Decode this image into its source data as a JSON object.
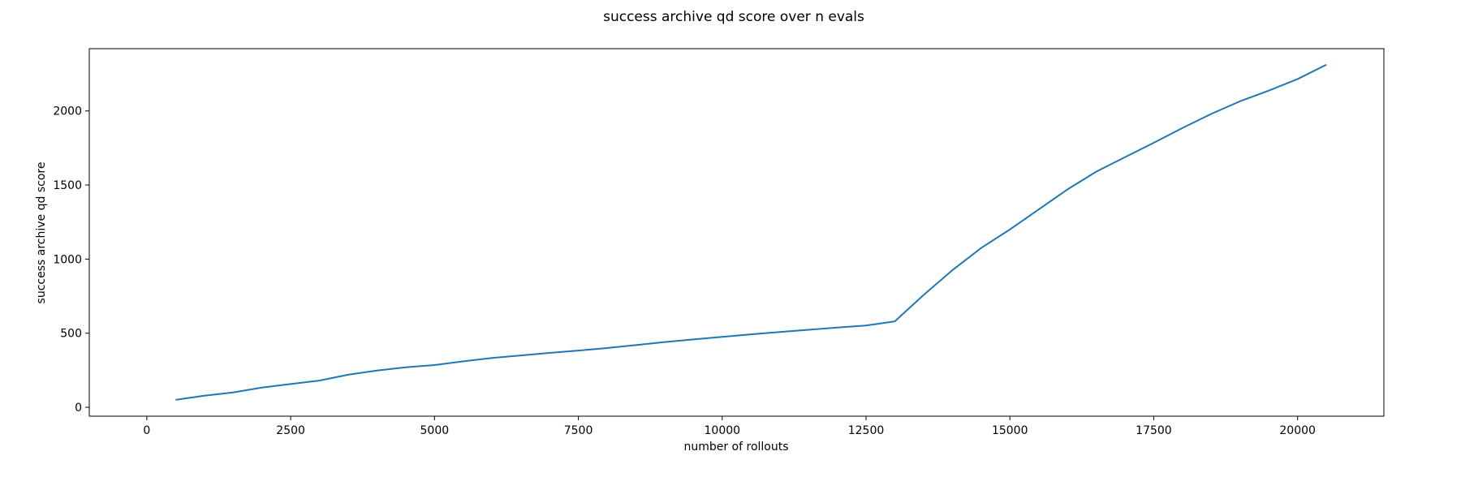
{
  "chart_data": {
    "type": "line",
    "title": "success archive qd score over n evals",
    "xlabel": "number of rollouts",
    "ylabel": "success archive qd score",
    "xlim": [
      -1000,
      21500
    ],
    "ylim": [
      -60,
      2420
    ],
    "xticks": [
      0,
      2500,
      5000,
      7500,
      10000,
      12500,
      15000,
      17500,
      20000
    ],
    "yticks": [
      0,
      500,
      1000,
      1500,
      2000
    ],
    "xtick_labels": [
      "0",
      "2500",
      "5000",
      "7500",
      "10000",
      "12500",
      "15000",
      "17500",
      "20000"
    ],
    "ytick_labels": [
      "0",
      "500",
      "1000",
      "1500",
      "2000"
    ],
    "grid": false,
    "legend": "none",
    "series": [
      {
        "color": "#1f77b4",
        "x": [
          500,
          1000,
          1500,
          2000,
          2500,
          3000,
          3500,
          4000,
          4500,
          5000,
          5500,
          6000,
          6500,
          7000,
          7500,
          8000,
          8500,
          9000,
          9500,
          10000,
          10500,
          11000,
          11500,
          12000,
          12500,
          13000,
          13500,
          14000,
          14500,
          15000,
          15500,
          16000,
          16500,
          17000,
          17500,
          18000,
          18500,
          19000,
          19500,
          20000,
          20500
        ],
        "y": [
          50,
          78,
          100,
          133,
          157,
          180,
          220,
          248,
          270,
          285,
          310,
          333,
          350,
          367,
          383,
          400,
          420,
          440,
          458,
          475,
          492,
          508,
          523,
          538,
          552,
          580,
          758,
          925,
          1075,
          1200,
          1335,
          1470,
          1590,
          1688,
          1785,
          1885,
          1980,
          2065,
          2137,
          2215,
          2312
        ]
      }
    ]
  }
}
